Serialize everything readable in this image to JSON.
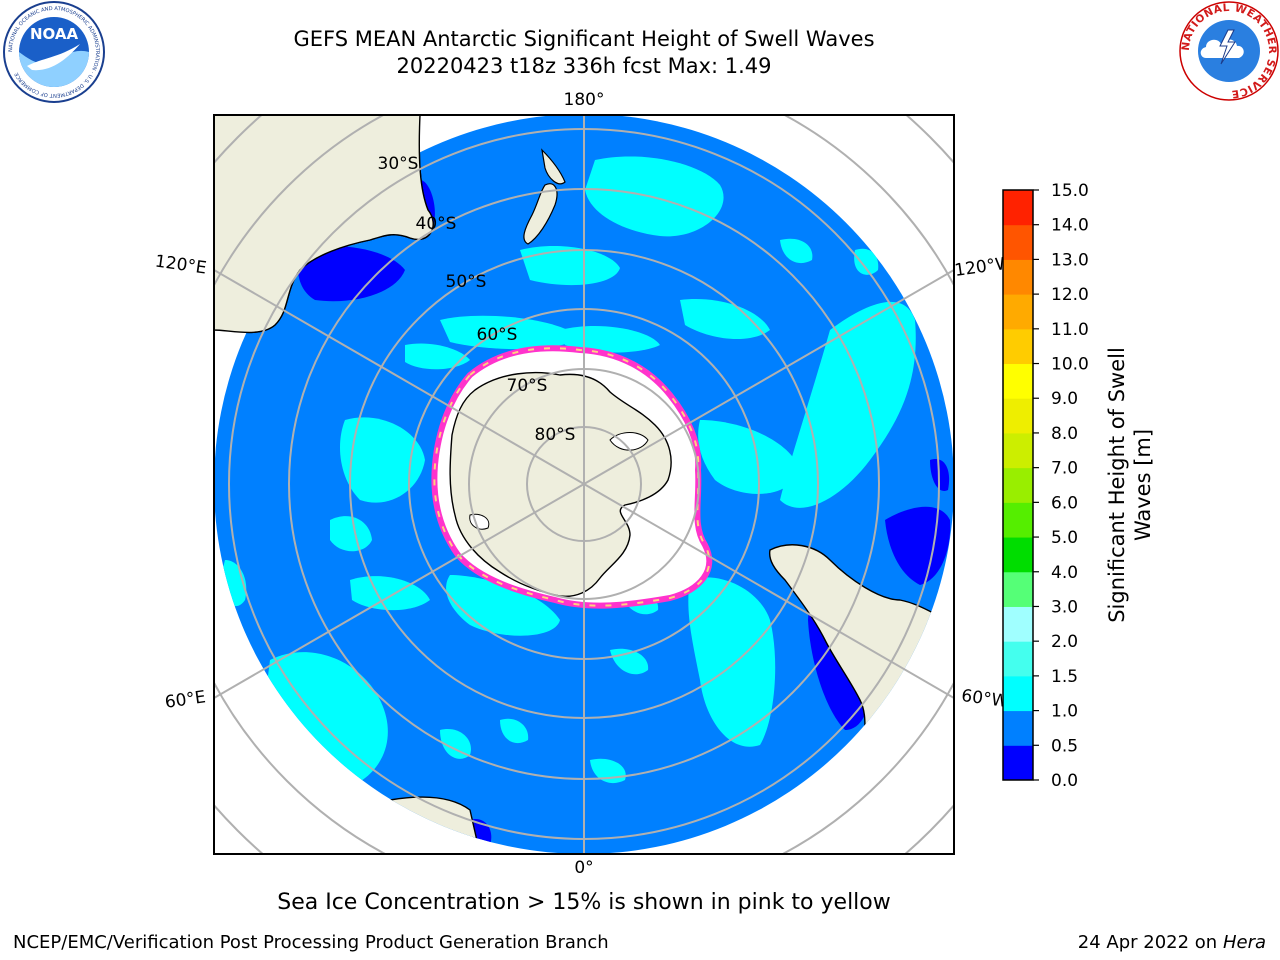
{
  "header": {
    "title": "GEFS MEAN Antarctic Significant Height of Swell Waves",
    "subtitle": "20220423 t18z 336h fcst   Max: 1.49"
  },
  "logos": {
    "left": {
      "text": "NOAA",
      "ring_text": "NATIONAL OCEANIC AND ATMOSPHERIC ADMINISTRATION · U.S. DEPARTMENT OF COMMERCE",
      "icon": "noaa-logo"
    },
    "right": {
      "ring_text": "NATIONAL WEATHER SERVICE",
      "icon": "nws-logo"
    }
  },
  "map": {
    "projection": "south-polar-stereographic",
    "lon_labels": {
      "top": "180°",
      "bottom": "0°",
      "upper_left": "120°E",
      "upper_right": "120°W",
      "lower_left": "60°E",
      "lower_right": "60°W"
    },
    "lat_labels": [
      "30°S",
      "40°S",
      "50°S",
      "60°S",
      "70°S",
      "80°S"
    ],
    "colors": {
      "ocean_low": "#0080ff",
      "ocean_mid": "#00ffff",
      "ocean_deep": "#0000ff",
      "land": "#eeeedd",
      "ice": "#ffffff",
      "ice_edge": "#ff33cc",
      "grid": "#b0b0b0"
    }
  },
  "colorbar": {
    "label_line1": "Significant Height of Swell",
    "label_line2": "Waves [m]",
    "ticks": [
      "0.0",
      "0.5",
      "1.0",
      "1.5",
      "2.0",
      "3.0",
      "4.0",
      "5.0",
      "6.0",
      "7.0",
      "8.0",
      "9.0",
      "10.0",
      "11.0",
      "12.0",
      "13.0",
      "14.0",
      "15.0"
    ],
    "colors": [
      "#0000ff",
      "#0080ff",
      "#00ffff",
      "#44ffee",
      "#a0ffff",
      "#55ff77",
      "#00dd00",
      "#55ee00",
      "#99ee00",
      "#ccee00",
      "#eeee00",
      "#ffff00",
      "#ffcc00",
      "#ffaa00",
      "#ff8800",
      "#ff5500",
      "#ff2200",
      "#ff0000"
    ]
  },
  "note": "Sea Ice Concentration > 15% is shown in pink to yellow",
  "footer": {
    "left": "NCEP/EMC/Verification Post Processing Product Generation Branch",
    "right_prefix": "24 Apr 2022 on ",
    "right_host": "Hera"
  }
}
